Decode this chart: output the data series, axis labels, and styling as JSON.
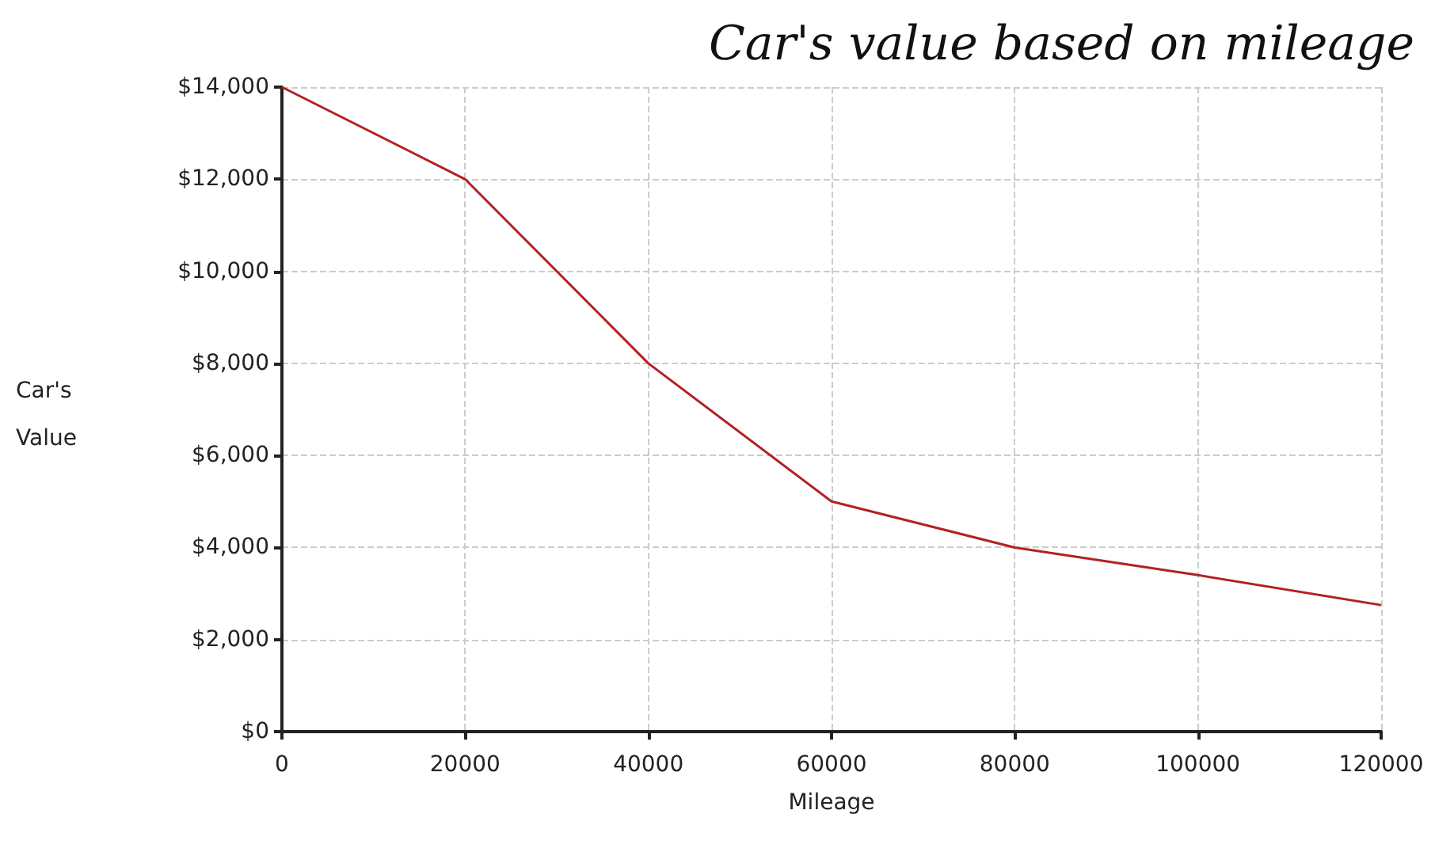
{
  "chart_data": {
    "type": "line",
    "title": "Car's value based on mileage",
    "xlabel": "Mileage",
    "ylabel": "Car's Value",
    "x": [
      0,
      20000,
      40000,
      60000,
      80000,
      100000,
      120000
    ],
    "series": [
      {
        "color": "#b22222",
        "values": [
          14000,
          12000,
          8000,
          5000,
          4000,
          3400,
          2750
        ]
      }
    ],
    "xlim": [
      0,
      120000
    ],
    "xticks": [
      0,
      20000,
      40000,
      60000,
      80000,
      100000,
      120000
    ],
    "ylim": [
      0,
      14000
    ],
    "yticks": [
      {
        "value": 0,
        "label": "$0"
      },
      {
        "value": 2000,
        "label": "$2,000"
      },
      {
        "value": 4000,
        "label": "$4,000"
      },
      {
        "value": 6000,
        "label": "$6,000"
      },
      {
        "value": 8000,
        "label": "$8,000"
      },
      {
        "value": 10000,
        "label": "$10,000"
      },
      {
        "value": 12000,
        "label": "$12,000"
      },
      {
        "value": 14000,
        "label": "$14,000"
      }
    ],
    "grid": true,
    "marker": "none",
    "line_style": "solid"
  }
}
